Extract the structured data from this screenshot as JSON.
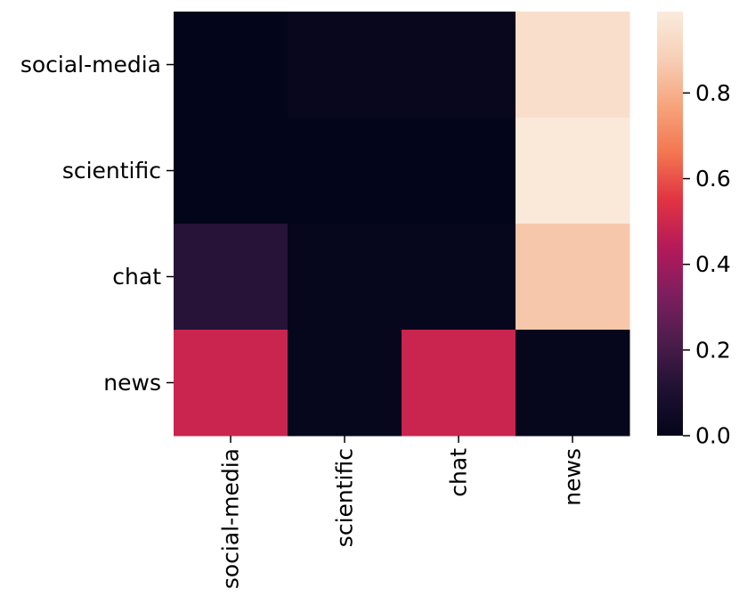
{
  "chart_data": {
    "type": "heatmap",
    "title": "",
    "xlabel": "",
    "ylabel": "",
    "x_categories": [
      "social-media",
      "scientific",
      "chat",
      "news"
    ],
    "y_categories": [
      "social-media",
      "scientific",
      "chat",
      "news"
    ],
    "values": [
      [
        0.0,
        0.02,
        0.02,
        0.94
      ],
      [
        0.0,
        0.0,
        0.0,
        0.98
      ],
      [
        0.13,
        0.01,
        0.01,
        0.86
      ],
      [
        0.49,
        0.01,
        0.49,
        0.01
      ]
    ],
    "colorbar": {
      "min": 0.0,
      "max": 0.99,
      "ticks": [
        0.0,
        0.2,
        0.4,
        0.6,
        0.8
      ],
      "tick_labels": [
        "0.0",
        "0.2",
        "0.4",
        "0.6",
        "0.8"
      ],
      "colormap": "rocket",
      "stops": [
        "#03051a",
        "#1f1132",
        "#4c1d4b",
        "#7e1e5e",
        "#b51a59",
        "#e13342",
        "#f37651",
        "#f6a47c",
        "#f7cfb6",
        "#faebdd"
      ]
    }
  }
}
